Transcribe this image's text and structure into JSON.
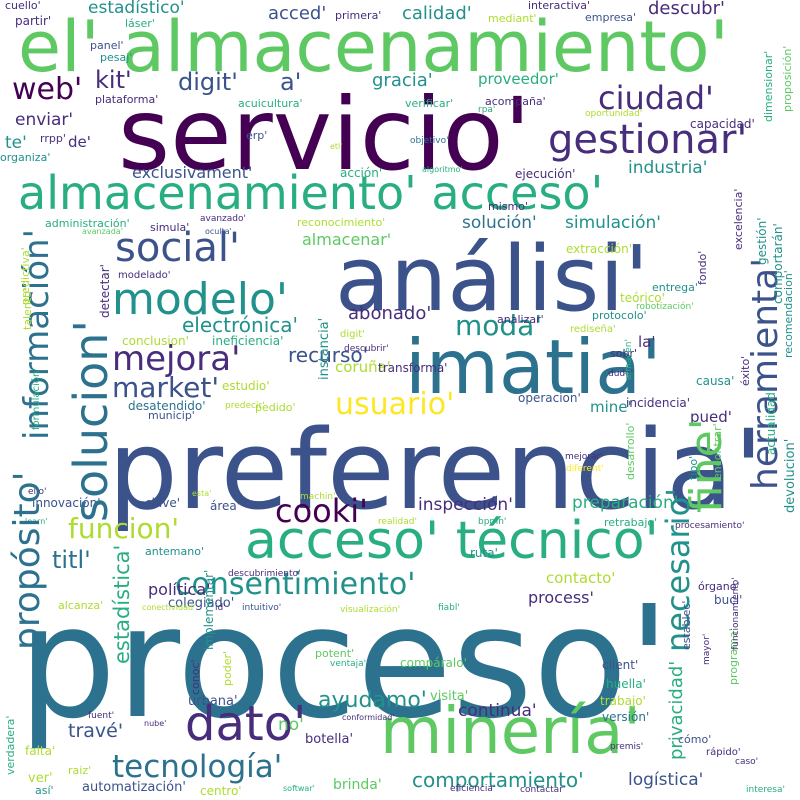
{
  "palette": {
    "c1": "#440154",
    "c2": "#472d7b",
    "c3": "#3b528b",
    "c4": "#2c728e",
    "c5": "#21918c",
    "c6": "#28ae80",
    "c7": "#5ec962",
    "c8": "#addc30",
    "c9": "#fde725"
  },
  "words": [
    {
      "text": "proceso'",
      "color": "c4"
    },
    {
      "text": "preferencia'",
      "color": "c3"
    },
    {
      "text": "servicio'",
      "color": "c1"
    },
    {
      "text": "el' almacenamiento'",
      "color": "c7"
    },
    {
      "text": "análisi'",
      "color": "c3"
    },
    {
      "text": "imatia'",
      "color": "c4"
    },
    {
      "text": "minería'",
      "color": "c7"
    },
    {
      "text": "almacenamiento' acceso'",
      "color": "c6"
    },
    {
      "text": "acceso' técnico'",
      "color": "c6"
    },
    {
      "text": "gestionar'",
      "color": "c2"
    },
    {
      "text": "modelo'",
      "color": "c5"
    },
    {
      "text": "social'",
      "color": "c3"
    },
    {
      "text": "mejora'",
      "color": "c2"
    },
    {
      "text": "dato'",
      "color": "c2"
    },
    {
      "text": "consentimiento'",
      "color": "c5"
    },
    {
      "text": "usuario'",
      "color": "c9"
    },
    {
      "text": "ciudad'",
      "color": "c2"
    },
    {
      "text": "tecnología'",
      "color": "c4"
    },
    {
      "text": "moda'",
      "color": "c5"
    },
    {
      "text": "funcion'",
      "color": "c8"
    },
    {
      "text": "market'",
      "color": "c3"
    },
    {
      "text": "titl'",
      "color": "c4"
    },
    {
      "text": "cooki'",
      "color": "c1"
    },
    {
      "text": "web'",
      "color": "c1"
    },
    {
      "text": "kit'",
      "color": "c2"
    },
    {
      "text": "digit'",
      "color": "c3"
    },
    {
      "text": "a'",
      "color": "c3"
    },
    {
      "text": "electrónica'",
      "color": "c5"
    },
    {
      "text": "ayudamo'",
      "color": "c5"
    },
    {
      "text": "comportamiento'",
      "color": "c5"
    },
    {
      "text": "recurso'",
      "color": "c3"
    },
    {
      "text": "abonado'",
      "color": "c2"
    },
    {
      "text": "industria'",
      "color": "c5"
    },
    {
      "text": "acced'",
      "color": "c3"
    },
    {
      "text": "calidad'",
      "color": "c5"
    },
    {
      "text": "descubr'",
      "color": "c2"
    },
    {
      "text": "estadístico'",
      "color": "c5"
    },
    {
      "text": "gracia'",
      "color": "c5"
    },
    {
      "text": "solución'",
      "color": "c4"
    },
    {
      "text": "simulación'",
      "color": "c5"
    },
    {
      "text": "exclusivament'",
      "color": "c3"
    },
    {
      "text": "enviar'",
      "color": "c2"
    },
    {
      "text": "inspección'",
      "color": "c2"
    },
    {
      "text": "preparación'",
      "color": "c6"
    },
    {
      "text": "process'",
      "color": "c2"
    },
    {
      "text": "continua'",
      "color": "c2"
    },
    {
      "text": "logística'",
      "color": "c3"
    },
    {
      "text": "travé'",
      "color": "c3"
    },
    {
      "text": "mine'",
      "color": "c5"
    },
    {
      "text": "pued'",
      "color": "c2"
    },
    {
      "text": "contacto'",
      "color": "c8"
    },
    {
      "text": "política'",
      "color": "c2"
    },
    {
      "text": "no'",
      "color": "c7"
    },
    {
      "text": "proveedor'",
      "color": "c6"
    },
    {
      "text": "te'",
      "color": "c5"
    },
    {
      "text": "de'",
      "color": "c2"
    },
    {
      "text": "la'",
      "color": "c2"
    },
    {
      "text": "coruña'",
      "color": "c8"
    },
    {
      "text": "almacenar'",
      "color": "c7"
    },
    {
      "text": "colegiado'",
      "color": "c3"
    },
    {
      "text": "automatización'",
      "color": "c3"
    },
    {
      "text": "brinda'",
      "color": "c7"
    },
    {
      "text": "botella'",
      "color": "c2"
    },
    {
      "text": "urbana'",
      "color": "c3"
    },
    {
      "text": "visita'",
      "color": "c7"
    },
    {
      "text": "innovación'",
      "color": "c3"
    },
    {
      "text": "clave'",
      "color": "c3"
    },
    {
      "text": "área'",
      "color": "c3"
    },
    {
      "text": "ruta'",
      "color": "c5"
    },
    {
      "text": "transforma'",
      "color": "c2"
    },
    {
      "text": "municip'",
      "color": "c3"
    },
    {
      "text": "estudio'",
      "color": "c8"
    },
    {
      "text": "conclusion'",
      "color": "c8"
    },
    {
      "text": "ineficiencia'",
      "color": "c6"
    },
    {
      "text": "desatendido'",
      "color": "c4"
    },
    {
      "text": "pedido'",
      "color": "c8"
    },
    {
      "text": "protocolo'",
      "color": "c5"
    },
    {
      "text": "entrega'",
      "color": "c5"
    },
    {
      "text": "incidencia'",
      "color": "c2"
    },
    {
      "text": "operacion'",
      "color": "c3"
    },
    {
      "text": "causa'",
      "color": "c5"
    },
    {
      "text": "retrabajo'",
      "color": "c6"
    },
    {
      "text": "órgano'",
      "color": "c2"
    },
    {
      "text": "bucl'",
      "color": "c3"
    },
    {
      "text": "client'",
      "color": "c3"
    },
    {
      "text": "huella'",
      "color": "c6"
    },
    {
      "text": "cómo'",
      "color": "c3"
    },
    {
      "text": "versión'",
      "color": "c4"
    },
    {
      "text": "trabajo'",
      "color": "c8"
    },
    {
      "text": "compáralo'",
      "color": "c7"
    },
    {
      "text": "potent'",
      "color": "c7"
    },
    {
      "text": "modelado'",
      "color": "c2"
    },
    {
      "text": "simula'",
      "color": "c2"
    },
    {
      "text": "extracción'",
      "color": "c8"
    },
    {
      "text": "capacidad'",
      "color": "c2"
    },
    {
      "text": "ejecución'",
      "color": "c2"
    },
    {
      "text": "acción'",
      "color": "c6"
    },
    {
      "text": "reconocimiento'",
      "color": "c8"
    },
    {
      "text": "administración'",
      "color": "c6"
    },
    {
      "text": "mismo'",
      "color": "c2"
    },
    {
      "text": "acuicultura'",
      "color": "c6"
    },
    {
      "text": "verificar'",
      "color": "c6"
    },
    {
      "text": "acompaña'",
      "color": "c2"
    },
    {
      "text": "plataforma'",
      "color": "c2"
    },
    {
      "text": "panel'",
      "color": "c3"
    },
    {
      "text": "pesaj'",
      "color": "c5"
    },
    {
      "text": "partir'",
      "color": "c2"
    },
    {
      "text": "láser'",
      "color": "c6"
    },
    {
      "text": "cuello'",
      "color": "c2"
    },
    {
      "text": "primera'",
      "color": "c2"
    },
    {
      "text": "mediant'",
      "color": "c8"
    },
    {
      "text": "interactiva'",
      "color": "c2"
    },
    {
      "text": "empresa'",
      "color": "c3"
    },
    {
      "text": "erp'",
      "color": "c3"
    },
    {
      "text": "organiza'",
      "color": "c5"
    },
    {
      "text": "rrpp'",
      "color": "c2"
    },
    {
      "text": "objetivo'",
      "color": "c4"
    },
    {
      "text": "etl'",
      "color": "c8"
    },
    {
      "text": "algoritmo'",
      "color": "c6"
    },
    {
      "text": "rpa'",
      "color": "c6"
    },
    {
      "text": "oportunidad'",
      "color": "c8"
    },
    {
      "text": "avanzado'",
      "color": "c2"
    },
    {
      "text": "oculta'",
      "color": "c3"
    },
    {
      "text": "avanzada'",
      "color": "c7"
    },
    {
      "text": "digit'",
      "color": "c8"
    },
    {
      "text": "descubrir'",
      "color": "c2"
    },
    {
      "text": "dude'",
      "color": "c2"
    },
    {
      "text": "mejorar'",
      "color": "c2"
    },
    {
      "text": "diferent'",
      "color": "c9"
    },
    {
      "text": "predecir'",
      "color": "c8"
    },
    {
      "text": "esta'",
      "color": "c8"
    },
    {
      "text": "machin'",
      "color": "c8"
    },
    {
      "text": "learn'",
      "color": "c6"
    },
    {
      "text": "realidad'",
      "color": "c8"
    },
    {
      "text": "bpmn'",
      "color": "c6"
    },
    {
      "text": "procesamiento'",
      "color": "c2"
    },
    {
      "text": "antemano'",
      "color": "c5"
    },
    {
      "text": "descubrimiento'",
      "color": "c2"
    },
    {
      "text": "conectividad'",
      "color": "c8"
    },
    {
      "text": "id'",
      "color": "c2"
    },
    {
      "text": "intuitivo'",
      "color": "c3"
    },
    {
      "text": "visualización'",
      "color": "c8"
    },
    {
      "text": "fiabl'",
      "color": "c6"
    },
    {
      "text": "alcanza'",
      "color": "c8"
    },
    {
      "text": "ventaja'",
      "color": "c6"
    },
    {
      "text": "fuent'",
      "color": "c2"
    },
    {
      "text": "nube'",
      "color": "c2"
    },
    {
      "text": "conformidad'",
      "color": "c2"
    },
    {
      "text": "falta'",
      "color": "c8"
    },
    {
      "text": "raiz'",
      "color": "c8"
    },
    {
      "text": "ver'",
      "color": "c8"
    },
    {
      "text": "así'",
      "color": "c5"
    },
    {
      "text": "centro'",
      "color": "c8"
    },
    {
      "text": "softwar'",
      "color": "c6"
    },
    {
      "text": "eficiencia'",
      "color": "c2"
    },
    {
      "text": "contactar'",
      "color": "c2"
    },
    {
      "text": "premis'",
      "color": "c2"
    },
    {
      "text": "rápido'",
      "color": "c2"
    },
    {
      "text": "caso'",
      "color": "c2"
    },
    {
      "text": "interesa'",
      "color": "c6"
    },
    {
      "text": "ello'",
      "color": "c2"
    },
    {
      "text": "sobr'",
      "color": "c2"
    },
    {
      "text": "analizar'",
      "color": "c2"
    },
    {
      "text": "rediseña'",
      "color": "c8"
    },
    {
      "text": "teórico'",
      "color": "c8"
    },
    {
      "text": "robotización'",
      "color": "c7"
    },
    {
      "text": "fine'",
      "color": "c7"
    },
    {
      "text": "herramienta'",
      "color": "c3"
    },
    {
      "text": "necesario'",
      "color": "c5"
    },
    {
      "text": "solucion'",
      "color": "c4"
    },
    {
      "text": "información'",
      "color": "c4"
    },
    {
      "text": "propósito'",
      "color": "c4"
    },
    {
      "text": "estadística'",
      "color": "c6"
    },
    {
      "text": "privacidad'",
      "color": "c6"
    },
    {
      "text": "instancia'",
      "color": "c5"
    },
    {
      "text": "detectar'",
      "color": "c2"
    },
    {
      "text": "fondo'",
      "color": "c2"
    },
    {
      "text": "excelencia'",
      "color": "c2"
    },
    {
      "text": "gestión'",
      "color": "c5"
    },
    {
      "text": "comportarán'",
      "color": "c5"
    },
    {
      "text": "recomendacion'",
      "color": "c5"
    },
    {
      "text": "actualidad'",
      "color": "c6"
    },
    {
      "text": "devolucion'",
      "color": "c5"
    },
    {
      "text": "proposición'",
      "color": "c7"
    },
    {
      "text": "dimensionar'",
      "color": "c6"
    },
    {
      "text": "éxito'",
      "color": "c2"
    },
    {
      "text": "almacén'",
      "color": "c6"
    },
    {
      "text": "encontrar'",
      "color": "c7"
    },
    {
      "text": "tipo'",
      "color": "c5"
    },
    {
      "text": "desarrollo'",
      "color": "c7"
    },
    {
      "text": "programa'",
      "color": "c7"
    },
    {
      "text": "funcionamiento'",
      "color": "c2"
    },
    {
      "text": "mayor'",
      "color": "c2"
    },
    {
      "text": "establec'",
      "color": "c3"
    },
    {
      "text": "poder'",
      "color": "c8"
    },
    {
      "text": "conoc'",
      "color": "c2"
    },
    {
      "text": "implementar'",
      "color": "c5"
    },
    {
      "text": "verdadera'",
      "color": "c6"
    },
    {
      "text": "formulación'",
      "color": "c6"
    },
    {
      "text": "talento'",
      "color": "c8"
    },
    {
      "text": "predictiva'",
      "color": "c8"
    }
  ]
}
